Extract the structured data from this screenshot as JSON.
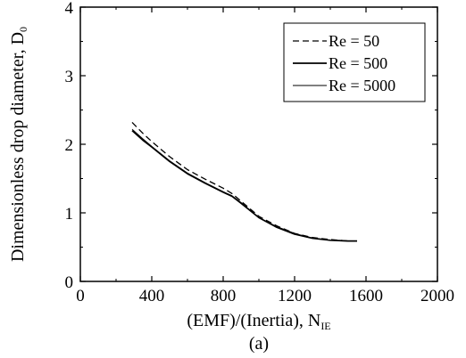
{
  "chart_data": {
    "type": "line",
    "xlabel": "(EMF)/(Inertia), N",
    "xlabel_subscript": "IE",
    "ylabel": "Dimensionless drop diameter, D",
    "ylabel_subscript": "0",
    "panel_label": "(a)",
    "xlim": [
      0,
      2000
    ],
    "ylim": [
      0,
      4
    ],
    "x_ticks": [
      0,
      400,
      800,
      1200,
      1600,
      2000
    ],
    "y_ticks": [
      0,
      1,
      2,
      3,
      4
    ],
    "x_tick_labels": [
      "0",
      "400",
      "800",
      "1200",
      "1600",
      "2000"
    ],
    "y_tick_labels": [
      "0",
      "1",
      "2",
      "3",
      "4"
    ],
    "grid": false,
    "legend_position": "top-right",
    "series": [
      {
        "name": "Re = 50",
        "style": "dashed",
        "x": [
          290,
          350,
          400,
          500,
          600,
          700,
          800,
          850,
          900,
          1000,
          1100,
          1200,
          1300,
          1400,
          1500,
          1550
        ],
        "y": [
          2.32,
          2.16,
          2.04,
          1.82,
          1.63,
          1.49,
          1.36,
          1.28,
          1.17,
          0.95,
          0.81,
          0.7,
          0.64,
          0.61,
          0.59,
          0.59
        ]
      },
      {
        "name": "Re = 500",
        "style": "solid",
        "x": [
          290,
          350,
          400,
          500,
          600,
          700,
          800,
          850,
          900,
          1000,
          1100,
          1200,
          1300,
          1400,
          1500,
          1550
        ],
        "y": [
          2.2,
          2.06,
          1.96,
          1.75,
          1.57,
          1.43,
          1.3,
          1.24,
          1.14,
          0.93,
          0.79,
          0.69,
          0.63,
          0.6,
          0.59,
          0.59
        ]
      },
      {
        "name": "Re = 5000",
        "style": "thin",
        "x": [
          290,
          350,
          400,
          500,
          600,
          700,
          800,
          850,
          900,
          1000,
          1100,
          1200,
          1300,
          1400,
          1500,
          1550
        ],
        "y": [
          2.22,
          2.08,
          1.97,
          1.76,
          1.58,
          1.44,
          1.31,
          1.25,
          1.15,
          0.93,
          0.8,
          0.7,
          0.63,
          0.6,
          0.59,
          0.59
        ]
      }
    ]
  }
}
